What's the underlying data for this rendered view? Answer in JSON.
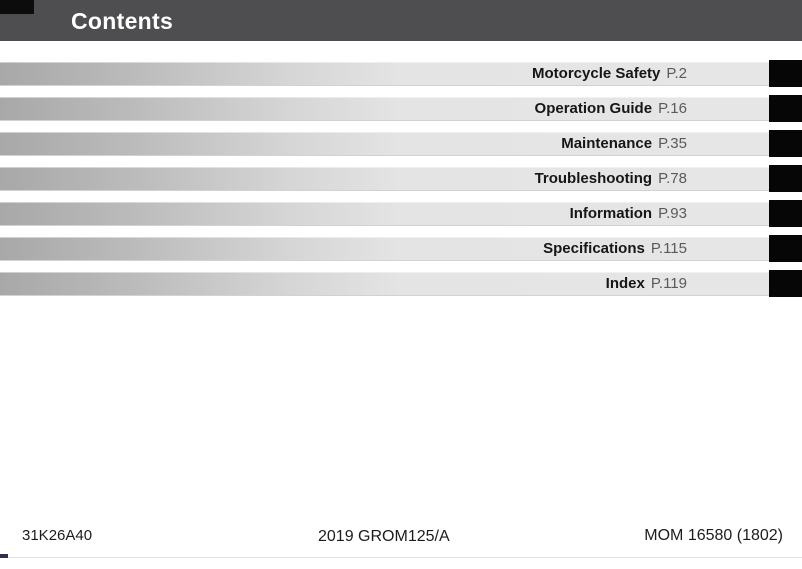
{
  "header": {
    "title": "Contents"
  },
  "toc": {
    "items": [
      {
        "title": "Motorcycle Safety",
        "page": "P.2"
      },
      {
        "title": "Operation Guide",
        "page": "P.16"
      },
      {
        "title": "Maintenance",
        "page": "P.35"
      },
      {
        "title": "Troubleshooting",
        "page": "P.78"
      },
      {
        "title": "Information",
        "page": "P.93"
      },
      {
        "title": "Specifications",
        "page": "P.115"
      },
      {
        "title": "Index",
        "page": "P.119"
      }
    ]
  },
  "footer": {
    "left": "31K26A40",
    "center": "2019 GROM125/A",
    "right": "MOM 16580 (1802)"
  },
  "colors": {
    "header_bg": "#4e4e50",
    "bar_gradient_start": "#a8a8a8",
    "bar_gradient_end": "#e6e6e6",
    "tab": "#060606",
    "page_ref_text": "#5a5a5a"
  }
}
